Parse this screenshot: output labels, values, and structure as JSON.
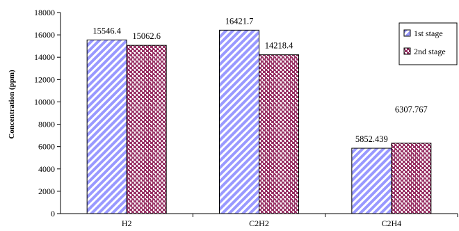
{
  "chart_data": {
    "type": "bar",
    "categories": [
      "H2",
      "C2H2",
      "C2H4"
    ],
    "series": [
      {
        "name": "1st stage",
        "values": [
          15546.4,
          16421.7,
          5852.439
        ],
        "labels": [
          "15546.4",
          "16421.7",
          "5852.439"
        ],
        "color": "#9999ff",
        "pattern": "diagonal-stripes"
      },
      {
        "name": "2nd stage",
        "values": [
          15062.6,
          14218.4,
          6307.767
        ],
        "labels": [
          "15062.6",
          "14218.4",
          "6307.767"
        ],
        "color": "#993366",
        "pattern": "dots"
      }
    ],
    "title": "",
    "xlabel": "",
    "ylabel": "Concentration (ppm)",
    "ylim": [
      0,
      18000
    ],
    "yticks": [
      "0",
      "2000",
      "4000",
      "6000",
      "8000",
      "10000",
      "12000",
      "14000",
      "16000",
      "18000"
    ],
    "grid": false,
    "legend_position": "top-right"
  }
}
